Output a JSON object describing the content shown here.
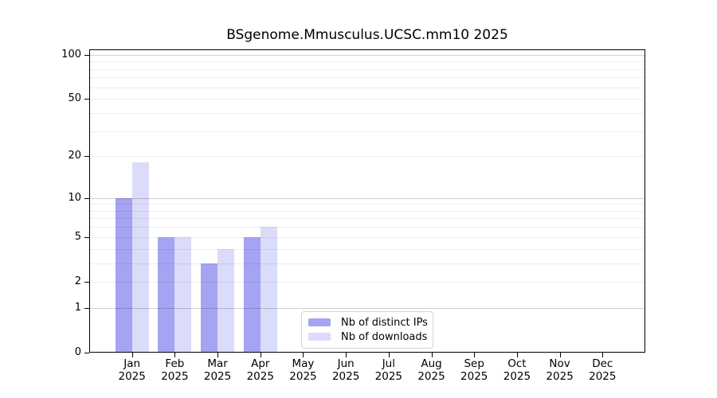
{
  "chart_data": {
    "type": "bar",
    "title": "BSgenome.Mmusculus.UCSC.mm10 2025",
    "categories": [
      "Jan",
      "Feb",
      "Mar",
      "Apr",
      "May",
      "Jun",
      "Jul",
      "Aug",
      "Sep",
      "Oct",
      "Nov",
      "Dec"
    ],
    "x_year": "2025",
    "series": [
      {
        "name": "Nb of distinct IPs",
        "color": "#a4a4f2",
        "values": [
          10,
          5,
          3,
          5,
          0,
          0,
          0,
          0,
          0,
          0,
          0,
          0
        ]
      },
      {
        "name": "Nb of downloads",
        "color": "#dbdbfa",
        "values": [
          18,
          5,
          4,
          6,
          0,
          0,
          0,
          0,
          0,
          0,
          0,
          0
        ]
      }
    ],
    "yscale": "log1p",
    "ylim": [
      0,
      109
    ],
    "y_tick_labels": [
      "0",
      "1",
      "2",
      "5",
      "10",
      "20",
      "50",
      "100"
    ],
    "y_tick_values": [
      0,
      1,
      2,
      5,
      10,
      20,
      50,
      100
    ],
    "grid_minor_values": [
      2,
      3,
      4,
      5,
      6,
      7,
      8,
      9,
      20,
      30,
      40,
      50,
      60,
      70,
      80,
      90
    ],
    "grid_major_values": [
      1,
      10,
      100
    ],
    "grid_minor_color": "rgba(0,0,0,0.07)",
    "grid_major_color": "rgba(0,0,0,0.18)",
    "axis_color": "#000000",
    "legend_position": "inside-bottom-center",
    "grid": "on"
  }
}
